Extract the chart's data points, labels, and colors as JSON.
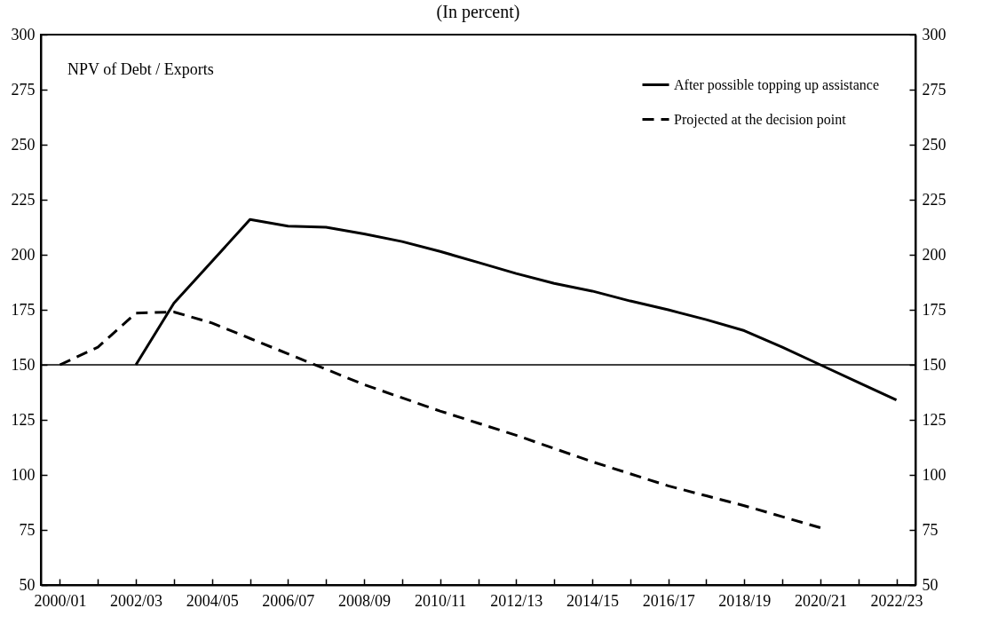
{
  "chart_data": {
    "type": "line",
    "title": "(In percent)",
    "annotations": [
      "NPV of Debt / Exports"
    ],
    "categories": [
      "2000/01",
      null,
      "2002/03",
      null,
      "2004/05",
      null,
      "2006/07",
      null,
      "2008/09",
      null,
      "2010/11",
      null,
      "2012/13",
      null,
      "2014/15",
      null,
      "2016/17",
      null,
      "2018/19",
      null,
      "2020/21",
      null,
      "2022/23"
    ],
    "series": [
      {
        "name": "After possible topping up assistance",
        "color": "#000000",
        "line_style": "solid",
        "values": [
          null,
          null,
          150,
          178,
          197,
          216,
          213,
          212.5,
          209.5,
          206,
          201.5,
          196.5,
          191.5,
          187,
          183.5,
          179,
          175,
          170.5,
          165.5,
          158,
          150,
          142,
          134
        ]
      },
      {
        "name": "Projected at the decision point",
        "color": "#000000",
        "line_style": "dashed",
        "values": [
          150,
          158,
          173.5,
          174,
          169,
          162,
          155,
          148,
          141,
          135,
          129,
          123.5,
          118,
          112,
          106,
          100.5,
          95,
          90.5,
          86,
          81,
          76,
          null,
          null
        ]
      }
    ],
    "ylim": [
      50,
      300
    ],
    "yticks": [
      50,
      75,
      100,
      125,
      150,
      175,
      200,
      225,
      250,
      275,
      300
    ],
    "y2lim": [
      50,
      300
    ],
    "y2ticks": [
      50,
      75,
      100,
      125,
      150,
      175,
      200,
      225,
      250,
      275,
      300
    ],
    "ref_lines": [
      {
        "axis": "y",
        "value": 150,
        "color": "#000000"
      }
    ],
    "grid": false,
    "legend": "top right"
  }
}
